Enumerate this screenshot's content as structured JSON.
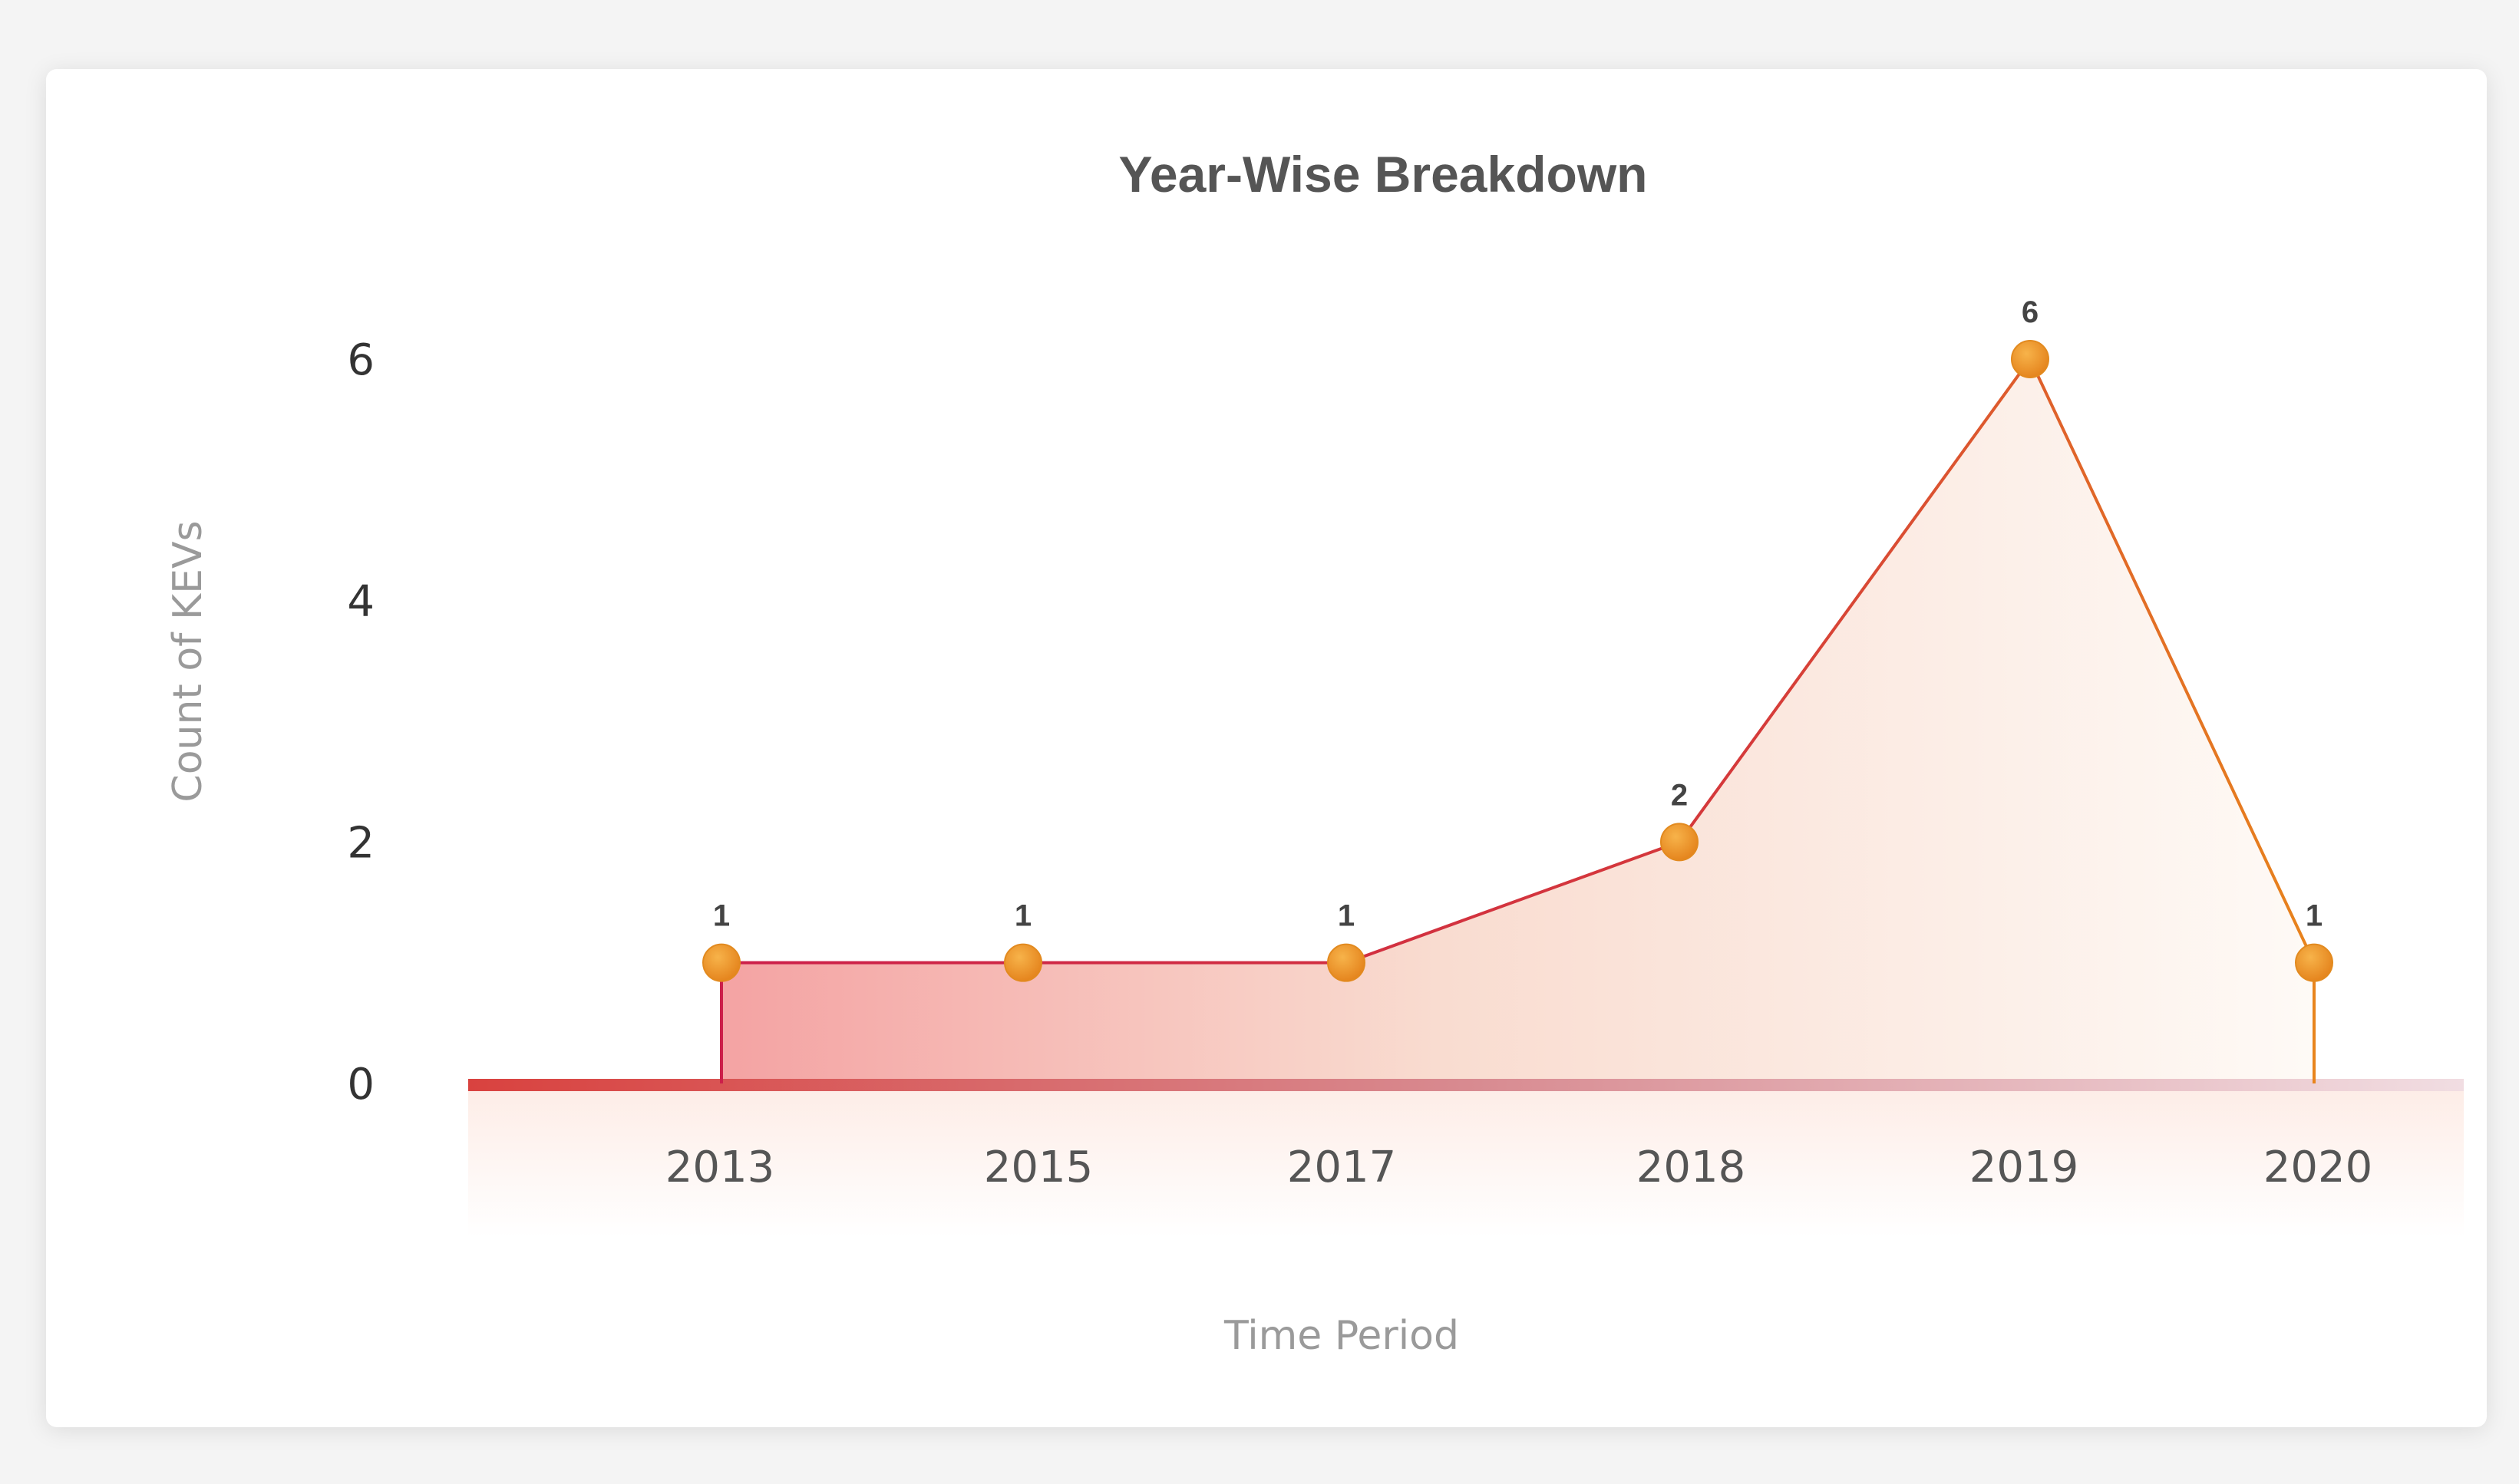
{
  "chart_data": {
    "type": "area",
    "title": "Year-Wise Breakdown",
    "xlabel": "Time Period",
    "ylabel": "Count of KEVs",
    "categories": [
      "2013",
      "2015",
      "2017",
      "2018",
      "2019",
      "2020"
    ],
    "values": [
      1,
      1,
      1,
      2,
      6,
      1
    ],
    "data_labels": [
      "1",
      "1",
      "1",
      "2",
      "6",
      "1"
    ],
    "yticks": [
      0,
      2,
      4,
      6
    ],
    "ylim": [
      0,
      6
    ],
    "grid": true,
    "legend": "none",
    "colors": {
      "line_start": "#cc1f4a",
      "line_end": "#e8841c",
      "fill_start": "#f4a3a3",
      "fill_end": "#fdf3ea",
      "marker": "#f0982a",
      "baseline_start": "#d9423f",
      "baseline_end": "#f1d6dc",
      "grid_start": "#f6b3b3",
      "grid_end": "#f7efdc"
    }
  }
}
